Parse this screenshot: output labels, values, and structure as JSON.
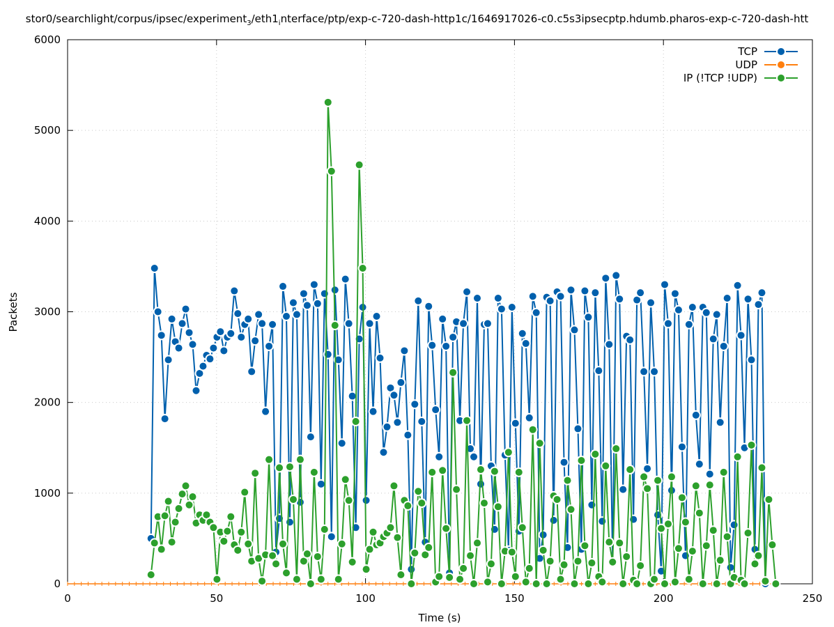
{
  "chart_data": {
    "type": "line",
    "title_parts": [
      "stor0/searchlight/corpus/ipsec/experiment",
      "3",
      "/eth1",
      "i",
      "nterface/ptp/exp-c-720-dash-http1c/1646917026-c0.c5s3ipsecptp.hdumb.pharos-exp-c-720-dash-htt"
    ],
    "xlabel": "Time (s)",
    "ylabel": "Packets",
    "xlim": [
      0,
      250
    ],
    "ylim": [
      0,
      6000
    ],
    "xticks": [
      0,
      50,
      100,
      150,
      200,
      250
    ],
    "yticks": [
      0,
      1000,
      2000,
      3000,
      4000,
      5000,
      6000
    ],
    "grid": true,
    "legend_position": "top-right",
    "x_start": 28,
    "x_step": 1.165,
    "series": [
      {
        "name": "TCP",
        "color": "#0060ad",
        "values": [
          500,
          3480,
          3000,
          2740,
          1820,
          2470,
          2920,
          2670,
          2600,
          2870,
          3030,
          2770,
          2640,
          2130,
          2320,
          2400,
          2520,
          2480,
          2600,
          2720,
          2780,
          2570,
          2720,
          2760,
          3230,
          2980,
          2720,
          2860,
          2920,
          2340,
          2680,
          2970,
          2870,
          1900,
          2620,
          2860,
          350,
          720,
          3280,
          2950,
          680,
          3100,
          2970,
          900,
          3200,
          3070,
          1620,
          3300,
          3090,
          1100,
          3200,
          2530,
          520,
          3240,
          2470,
          1550,
          3360,
          2870,
          2070,
          620,
          2700,
          3050,
          920,
          2870,
          1900,
          2950,
          2490,
          1450,
          1730,
          2160,
          2080,
          1780,
          2220,
          2570,
          1640,
          160,
          1980,
          3120,
          1790,
          460,
          3060,
          2630,
          1920,
          1400,
          2920,
          2620,
          120,
          2720,
          2890,
          1800,
          2870,
          3220,
          1490,
          1400,
          3150,
          1100,
          2860,
          2870,
          1300,
          600,
          3150,
          3030,
          1420,
          370,
          3050,
          1770,
          580,
          2760,
          2650,
          1830,
          3170,
          2990,
          280,
          540,
          3160,
          3120,
          700,
          3220,
          3170,
          1340,
          400,
          3240,
          2800,
          1710,
          380,
          3230,
          2940,
          870,
          3210,
          2350,
          690,
          3370,
          2640,
          240,
          3400,
          3140,
          1040,
          2730,
          2690,
          710,
          3130,
          3210,
          2340,
          1270,
          3100,
          2340,
          760,
          140,
          3300,
          2870,
          1030,
          3200,
          3020,
          1510,
          310,
          2860,
          3050,
          1860,
          1320,
          3050,
          2990,
          1210,
          2700,
          2970,
          1780,
          2620,
          3150,
          180,
          650,
          3290,
          2740,
          1500,
          3140,
          2470,
          380,
          3080,
          3210,
          0
        ]
      },
      {
        "name": "UDP",
        "color": "#ff7f0e",
        "values": [
          0
        ]
      },
      {
        "name": "IP (!TCP  !UDP)",
        "color": "#2ca02c",
        "values": [
          100,
          450,
          740,
          380,
          750,
          910,
          460,
          680,
          830,
          990,
          1080,
          870,
          960,
          670,
          760,
          700,
          760,
          680,
          620,
          50,
          570,
          470,
          580,
          740,
          430,
          370,
          570,
          1010,
          440,
          250,
          1220,
          280,
          30,
          320,
          1370,
          310,
          220,
          1280,
          440,
          120,
          1290,
          930,
          50,
          1370,
          250,
          330,
          0,
          1230,
          300,
          50,
          600,
          5310,
          4550,
          2850,
          50,
          440,
          1150,
          920,
          240,
          1790,
          4620,
          3480,
          160,
          380,
          570,
          430,
          450,
          520,
          560,
          620,
          1080,
          510,
          100,
          920,
          860,
          0,
          340,
          1020,
          890,
          320,
          400,
          1230,
          20,
          80,
          1250,
          610,
          70,
          2330,
          1040,
          50,
          170,
          1800,
          310,
          0,
          450,
          1260,
          890,
          20,
          220,
          1240,
          850,
          0,
          360,
          1450,
          350,
          80,
          1230,
          620,
          20,
          170,
          1700,
          0,
          1550,
          370,
          0,
          250,
          970,
          930,
          50,
          210,
          1140,
          820,
          0,
          250,
          1360,
          420,
          0,
          230,
          1430,
          80,
          20,
          1300,
          460,
          240,
          1490,
          450,
          0,
          300,
          1260,
          40,
          0,
          200,
          1180,
          1050,
          0,
          50,
          1140,
          610,
          0,
          660,
          1180,
          20,
          390,
          950,
          680,
          50,
          360,
          1080,
          780,
          0,
          420,
          1090,
          590,
          0,
          260,
          1230,
          520,
          0,
          70,
          1400,
          40,
          0,
          560,
          1530,
          220,
          310,
          1280,
          30,
          930,
          430,
          0
        ]
      }
    ]
  }
}
